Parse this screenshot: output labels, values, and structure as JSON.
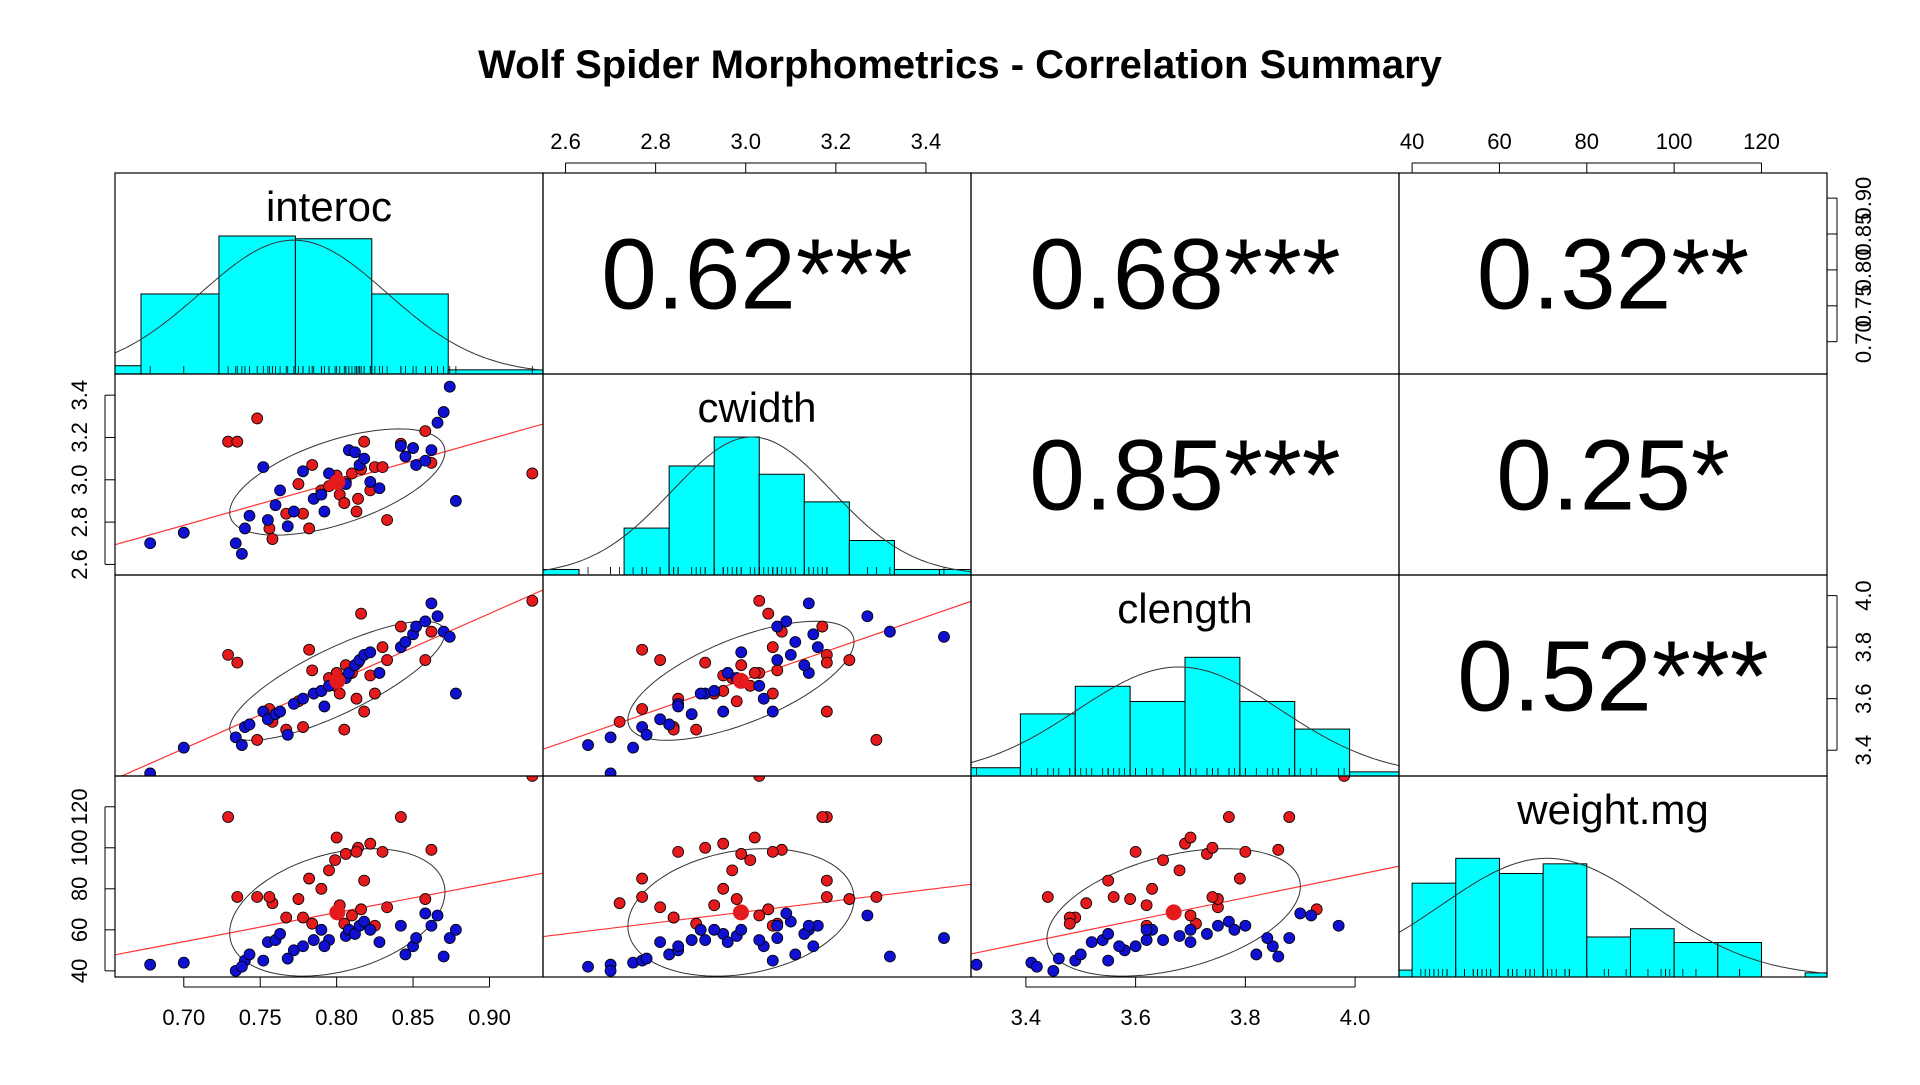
{
  "title": "Wolf Spider Morphometrics - Correlation Summary",
  "colors": {
    "histogram_fill": "#00FFFF",
    "group_a": "#E41A1C",
    "group_b": "#1010D0",
    "regression_line": "#FF3333",
    "density_curve": "#333333",
    "frame": "#000000",
    "background": "#FFFFFF"
  },
  "chart_data": {
    "type": "scatter",
    "variables": [
      {
        "name": "interoc",
        "range": [
          0.655,
          0.935
        ],
        "ticks": [
          0.7,
          0.75,
          0.8,
          0.85,
          0.9
        ],
        "tick_labels": [
          "0.70",
          "0.75",
          "0.80",
          "0.85",
          "0.90"
        ],
        "axis_side": "bottom-and-right",
        "histogram": {
          "bins": [
            [
              0.655,
              0.672,
              0.06
            ],
            [
              0.672,
              0.723,
              0.58
            ],
            [
              0.723,
              0.773,
              1.0
            ],
            [
              0.773,
              0.823,
              0.98
            ],
            [
              0.823,
              0.873,
              0.58
            ],
            [
              0.873,
              0.935,
              0.03
            ]
          ],
          "curve_peak": 0.97
        }
      },
      {
        "name": "cwidth",
        "range": [
          2.55,
          3.5
        ],
        "ticks": [
          2.6,
          2.8,
          3.0,
          3.2,
          3.4
        ],
        "tick_labels": [
          "2.6",
          "2.8",
          "3.0",
          "3.2",
          "3.4"
        ],
        "axis_side": "top-and-left",
        "histogram": {
          "bins": [
            [
              2.55,
              2.63,
              0.04
            ],
            [
              2.73,
              2.83,
              0.34
            ],
            [
              2.83,
              2.93,
              0.79
            ],
            [
              2.93,
              3.03,
              1.0
            ],
            [
              3.03,
              3.13,
              0.73
            ],
            [
              3.13,
              3.23,
              0.53
            ],
            [
              3.23,
              3.33,
              0.25
            ],
            [
              3.33,
              3.43,
              0.04
            ],
            [
              3.43,
              3.5,
              0.04
            ]
          ],
          "curve_peak": 1.0
        }
      },
      {
        "name": "clength",
        "range": [
          3.3,
          4.08
        ],
        "ticks": [
          3.4,
          3.6,
          3.8,
          4.0
        ],
        "tick_labels": [
          "3.4",
          "3.6",
          "3.8",
          "4.0"
        ],
        "axis_side": "bottom-and-right",
        "histogram": {
          "bins": [
            [
              3.3,
              3.39,
              0.06
            ],
            [
              3.39,
              3.49,
              0.45
            ],
            [
              3.49,
              3.59,
              0.65
            ],
            [
              3.59,
              3.69,
              0.54
            ],
            [
              3.69,
              3.79,
              0.86
            ],
            [
              3.79,
              3.89,
              0.54
            ],
            [
              3.89,
              3.99,
              0.34
            ],
            [
              3.99,
              4.08,
              0.03
            ]
          ],
          "curve_peak": 0.79
        }
      },
      {
        "name": "weight.mg",
        "range": [
          37,
          135
        ],
        "ticks": [
          40,
          60,
          80,
          100,
          120
        ],
        "tick_labels": [
          "40",
          "60",
          "80",
          "100",
          "120"
        ],
        "axis_side": "top-and-left",
        "histogram": {
          "bins": [
            [
              37,
              40,
              0.05
            ],
            [
              40,
              50,
              0.68
            ],
            [
              50,
              60,
              0.86
            ],
            [
              60,
              70,
              0.75
            ],
            [
              70,
              80,
              0.82
            ],
            [
              80,
              90,
              0.29
            ],
            [
              90,
              100,
              0.35
            ],
            [
              100,
              110,
              0.25
            ],
            [
              110,
              120,
              0.25
            ],
            [
              130,
              135,
              0.03
            ]
          ],
          "curve_peak": 0.86
        }
      }
    ],
    "correlations": [
      {
        "row": 0,
        "col": 1,
        "label": "0.62***"
      },
      {
        "row": 0,
        "col": 2,
        "label": "0.68***"
      },
      {
        "row": 0,
        "col": 3,
        "label": "0.32**"
      },
      {
        "row": 1,
        "col": 2,
        "label": "0.85***"
      },
      {
        "row": 1,
        "col": 3,
        "label": "0.25*"
      },
      {
        "row": 2,
        "col": 3,
        "label": "0.52***"
      }
    ],
    "series": [
      {
        "group": "red",
        "points": [
          [
            0.729,
            3.18,
            3.77,
            115
          ],
          [
            0.748,
            3.29,
            3.44,
            76
          ],
          [
            0.775,
            2.98,
            3.59,
            75
          ],
          [
            0.784,
            3.07,
            3.71,
            63
          ],
          [
            0.79,
            2.95,
            3.63,
            80
          ],
          [
            0.795,
            2.97,
            3.68,
            89
          ],
          [
            0.799,
            3.01,
            3.65,
            94
          ],
          [
            0.802,
            2.93,
            3.62,
            72
          ],
          [
            0.806,
            2.99,
            3.73,
            97
          ],
          [
            0.81,
            3.03,
            3.7,
            67
          ],
          [
            0.814,
            2.91,
            3.74,
            100
          ],
          [
            0.818,
            3.18,
            3.55,
            84
          ],
          [
            0.822,
            2.95,
            3.69,
            102
          ],
          [
            0.758,
            2.72,
            3.51,
            73
          ],
          [
            0.782,
            2.77,
            3.79,
            85
          ],
          [
            0.8,
            3.02,
            3.7,
            105
          ],
          [
            0.813,
            2.85,
            3.6,
            98
          ],
          [
            0.825,
            3.06,
            3.62,
            62
          ],
          [
            0.842,
            3.17,
            3.88,
            115
          ],
          [
            0.833,
            2.81,
            3.75,
            71
          ],
          [
            0.862,
            3.08,
            3.86,
            99
          ],
          [
            0.858,
            3.23,
            3.75,
            75
          ],
          [
            0.83,
            3.06,
            3.8,
            98
          ],
          [
            0.928,
            3.03,
            3.98,
            135
          ],
          [
            0.778,
            2.84,
            3.49,
            66
          ],
          [
            0.767,
            2.84,
            3.48,
            66
          ],
          [
            0.756,
            2.77,
            3.56,
            76
          ],
          [
            0.816,
            3.05,
            3.93,
            70
          ],
          [
            0.735,
            3.18,
            3.74,
            76
          ],
          [
            0.805,
            2.89,
            3.48,
            63
          ]
        ]
      },
      {
        "group": "blue",
        "points": [
          [
            0.678,
            2.7,
            3.31,
            43
          ],
          [
            0.7,
            2.75,
            3.41,
            44
          ],
          [
            0.734,
            2.7,
            3.45,
            40
          ],
          [
            0.74,
            2.77,
            3.49,
            45
          ],
          [
            0.743,
            2.83,
            3.5,
            48
          ],
          [
            0.752,
            3.06,
            3.55,
            45
          ],
          [
            0.755,
            2.81,
            3.52,
            54
          ],
          [
            0.76,
            2.88,
            3.54,
            55
          ],
          [
            0.763,
            2.95,
            3.55,
            58
          ],
          [
            0.772,
            2.85,
            3.58,
            50
          ],
          [
            0.778,
            3.04,
            3.6,
            52
          ],
          [
            0.785,
            2.91,
            3.62,
            55
          ],
          [
            0.79,
            2.93,
            3.63,
            60
          ],
          [
            0.795,
            3.03,
            3.65,
            55
          ],
          [
            0.806,
            2.98,
            3.68,
            57
          ],
          [
            0.808,
            3.14,
            3.7,
            60
          ],
          [
            0.812,
            3.13,
            3.73,
            58
          ],
          [
            0.815,
            3.07,
            3.75,
            62
          ],
          [
            0.818,
            3.1,
            3.77,
            64
          ],
          [
            0.822,
            2.99,
            3.78,
            60
          ],
          [
            0.842,
            3.16,
            3.8,
            62
          ],
          [
            0.845,
            3.11,
            3.82,
            48
          ],
          [
            0.85,
            3.15,
            3.85,
            52
          ],
          [
            0.852,
            3.07,
            3.88,
            56
          ],
          [
            0.858,
            3.09,
            3.9,
            68
          ],
          [
            0.862,
            3.14,
            3.97,
            62
          ],
          [
            0.866,
            3.27,
            3.92,
            67
          ],
          [
            0.87,
            3.32,
            3.86,
            47
          ],
          [
            0.874,
            3.44,
            3.84,
            56
          ],
          [
            0.878,
            2.9,
            3.62,
            60
          ],
          [
            0.738,
            2.65,
            3.42,
            42
          ],
          [
            0.768,
            2.78,
            3.46,
            46
          ],
          [
            0.792,
            2.85,
            3.57,
            52
          ],
          [
            0.828,
            2.96,
            3.7,
            54
          ]
        ]
      }
    ],
    "ellipse_level": 0.68,
    "grid": false,
    "legend": "none"
  }
}
